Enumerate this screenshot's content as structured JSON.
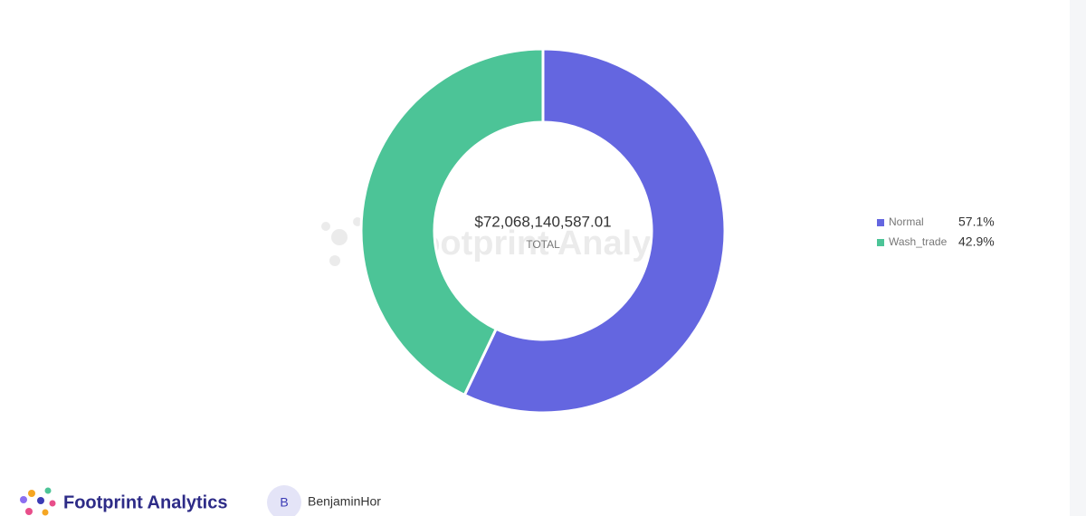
{
  "chart_data": {
    "type": "pie",
    "donut": true,
    "categories": [
      "Normal",
      "Wash_trade"
    ],
    "values": [
      57.1,
      42.9
    ],
    "value_labels": [
      "57.1%",
      "42.9%"
    ],
    "colors": [
      "#6466e0",
      "#4cc497"
    ],
    "center_value": "$72,068,140,587.01",
    "center_label": "TOTAL",
    "legend": "right"
  },
  "footer": {
    "brand": "Footprint Analytics",
    "avatar": "B",
    "user": "BenjaminHor"
  }
}
